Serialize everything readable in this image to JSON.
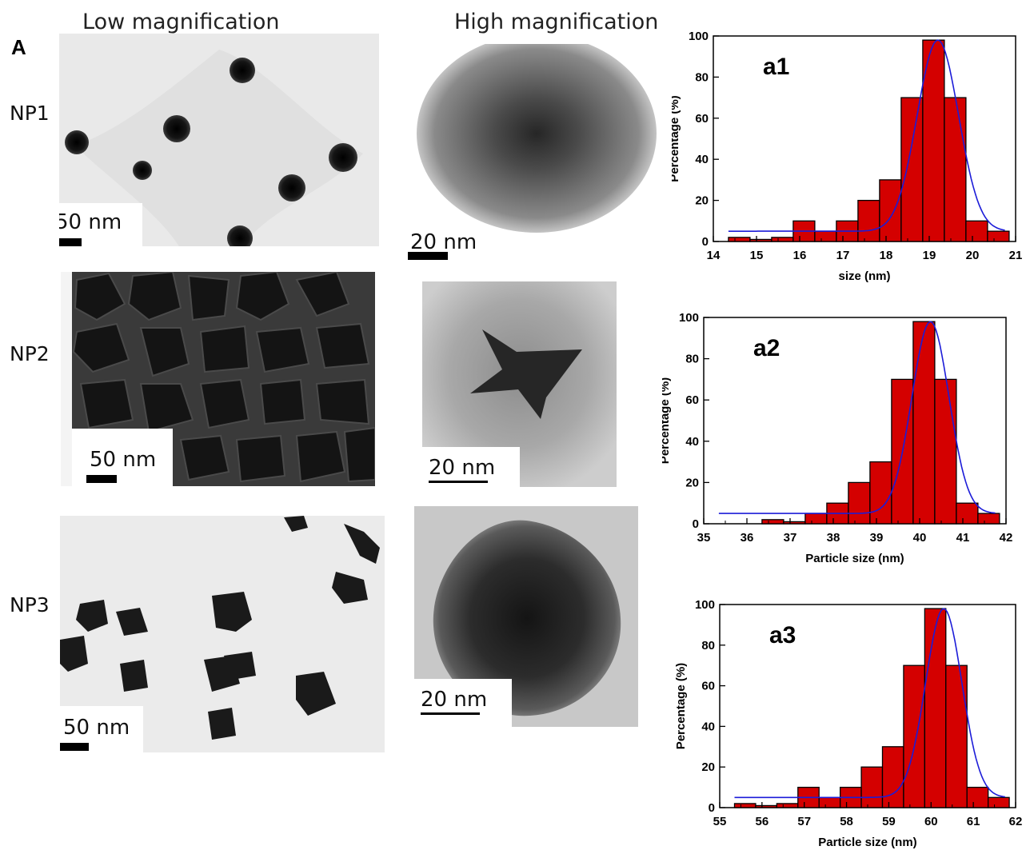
{
  "headers": {
    "low": "Low magnification",
    "high": "High magnification"
  },
  "panel_label": "A",
  "rows": [
    {
      "label": "NP1",
      "low_scale": "50 nm",
      "high_scale": "20 nm"
    },
    {
      "label": "NP2",
      "low_scale": "50 nm",
      "high_scale": "20 nm"
    },
    {
      "label": "NP3",
      "low_scale": "50 nm",
      "high_scale": "20 nm"
    }
  ],
  "colors": {
    "bar": "#d40000",
    "fit": "#1c1cd8"
  },
  "chart_data": [
    {
      "type": "bar",
      "title": "a1",
      "xlabel": "size (nm)",
      "ylabel": "Percentage (%)",
      "xlim": [
        14,
        21
      ],
      "ylim": [
        0,
        100
      ],
      "xticks": [
        "14",
        "15",
        "16",
        "17",
        "18",
        "19",
        "20",
        "21"
      ],
      "yticks": [
        "0",
        "20",
        "40",
        "60",
        "80",
        "100"
      ],
      "bins": [
        14.6,
        15.1,
        15.6,
        16.1,
        16.6,
        17.1,
        17.6,
        18.1,
        18.6,
        19.1,
        19.6,
        20.1,
        20.6
      ],
      "bin_width": 0.5,
      "values": [
        2,
        1,
        2,
        10,
        5,
        10,
        20,
        30,
        70,
        98,
        70,
        10,
        5
      ],
      "fit": {
        "baseline": 5,
        "amplitude": 93,
        "center": 19.2,
        "sigma": 0.48
      }
    },
    {
      "type": "bar",
      "title": "a2",
      "xlabel": "Particle size (nm)",
      "ylabel": "Percentage (%)",
      "xlim": [
        35,
        42
      ],
      "ylim": [
        0,
        100
      ],
      "xticks": [
        "35",
        "36",
        "37",
        "38",
        "39",
        "40",
        "41",
        "42"
      ],
      "yticks": [
        "0",
        "20",
        "40",
        "60",
        "80",
        "100"
      ],
      "bins": [
        35.6,
        36.1,
        36.6,
        37.1,
        37.6,
        38.1,
        38.6,
        39.1,
        39.6,
        40.1,
        40.6,
        41.1,
        41.6
      ],
      "bin_width": 0.5,
      "values": [
        0,
        0,
        2,
        1,
        5,
        10,
        20,
        30,
        70,
        98,
        70,
        10,
        5
      ],
      "fit": {
        "baseline": 5,
        "amplitude": 93,
        "center": 40.25,
        "sigma": 0.43
      }
    },
    {
      "type": "bar",
      "title": "a3",
      "xlabel": "Particle size (nm)",
      "ylabel": "Percentage (%)",
      "xlim": [
        55,
        62
      ],
      "ylim": [
        0,
        100
      ],
      "xticks": [
        "55",
        "56",
        "57",
        "58",
        "59",
        "60",
        "61",
        "62"
      ],
      "yticks": [
        "0",
        "20",
        "40",
        "60",
        "80",
        "100"
      ],
      "bins": [
        55.6,
        56.1,
        56.6,
        57.1,
        57.6,
        58.1,
        58.6,
        59.1,
        59.6,
        60.1,
        60.6,
        61.1,
        61.6
      ],
      "bin_width": 0.5,
      "values": [
        2,
        1,
        2,
        10,
        5,
        10,
        20,
        30,
        70,
        98,
        70,
        10,
        5
      ],
      "fit": {
        "baseline": 5,
        "amplitude": 93,
        "center": 60.3,
        "sigma": 0.43
      }
    }
  ]
}
